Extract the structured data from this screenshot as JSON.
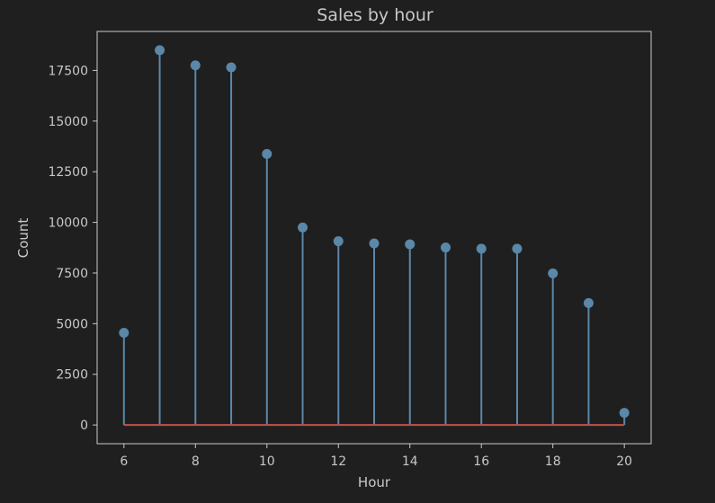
{
  "chart_data": {
    "type": "stem",
    "title": "Sales by hour",
    "xlabel": "Hour",
    "ylabel": "Count",
    "x": [
      6,
      7,
      8,
      9,
      10,
      11,
      12,
      13,
      14,
      15,
      16,
      17,
      18,
      19,
      20
    ],
    "y": [
      4550,
      18500,
      17750,
      17650,
      13380,
      9750,
      9070,
      8960,
      8920,
      8760,
      8700,
      8700,
      7480,
      6020,
      600
    ],
    "xlim": [
      5.25,
      20.75
    ],
    "ylim": [
      -925,
      19425
    ],
    "xticks": [
      6,
      8,
      10,
      12,
      14,
      16,
      18,
      20
    ],
    "yticks": [
      0,
      2500,
      5000,
      7500,
      10000,
      12500,
      15000,
      17500
    ],
    "grid": false,
    "colors": {
      "background": "#1f1f1f",
      "stem": "#5b87a8",
      "marker": "#5b87a8",
      "baseline": "#c0504d",
      "axes": "#c8c8c8",
      "text": "#c8c8c8"
    }
  }
}
